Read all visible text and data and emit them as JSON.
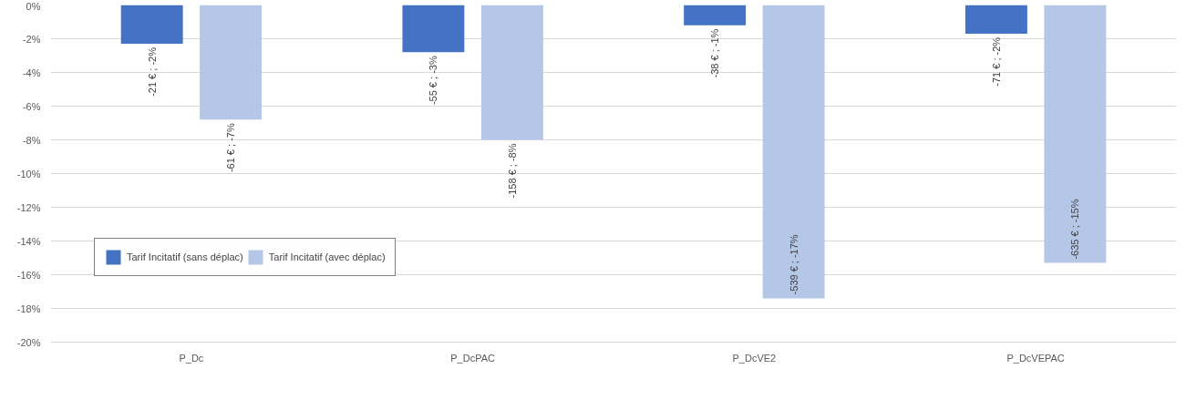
{
  "chart_data": {
    "type": "bar",
    "categories": [
      "P_Dc",
      "P_DcPAC",
      "P_DcVE2",
      "P_DcVEPAC"
    ],
    "series": [
      {
        "name": "Tarif Incitatif (sans déplac)",
        "color": "#4472c4",
        "values": [
          -2.3,
          -2.8,
          -1.2,
          -1.7
        ],
        "value_labels": [
          "-21 € ; -2%",
          "-55 € ; -3%",
          "-38 € ; -1%",
          "-71 € ; -2%"
        ]
      },
      {
        "name": "Tarif Incitatif (avec déplac)",
        "color": "#b4c7e7",
        "values": [
          -6.8,
          -8.0,
          -17.4,
          -15.3
        ],
        "value_labels": [
          "-61 € ; -7%",
          "-158 € ; -8%",
          "-539 € ; -17%",
          "-635 € ; -15%"
        ]
      }
    ],
    "ylim": [
      -20,
      0
    ],
    "yticks": [
      {
        "value": 0,
        "label": "0%"
      },
      {
        "value": -2,
        "label": "-2%"
      },
      {
        "value": -4,
        "label": "-4%"
      },
      {
        "value": -6,
        "label": "-6%"
      },
      {
        "value": -8,
        "label": "-8%"
      },
      {
        "value": -10,
        "label": "-10%"
      },
      {
        "value": -12,
        "label": "-12%"
      },
      {
        "value": -14,
        "label": "-14%"
      },
      {
        "value": -16,
        "label": "-16%"
      },
      {
        "value": -18,
        "label": "-18%"
      },
      {
        "value": -20,
        "label": "-20%"
      }
    ],
    "grid": "y",
    "legend": "bottom left"
  }
}
